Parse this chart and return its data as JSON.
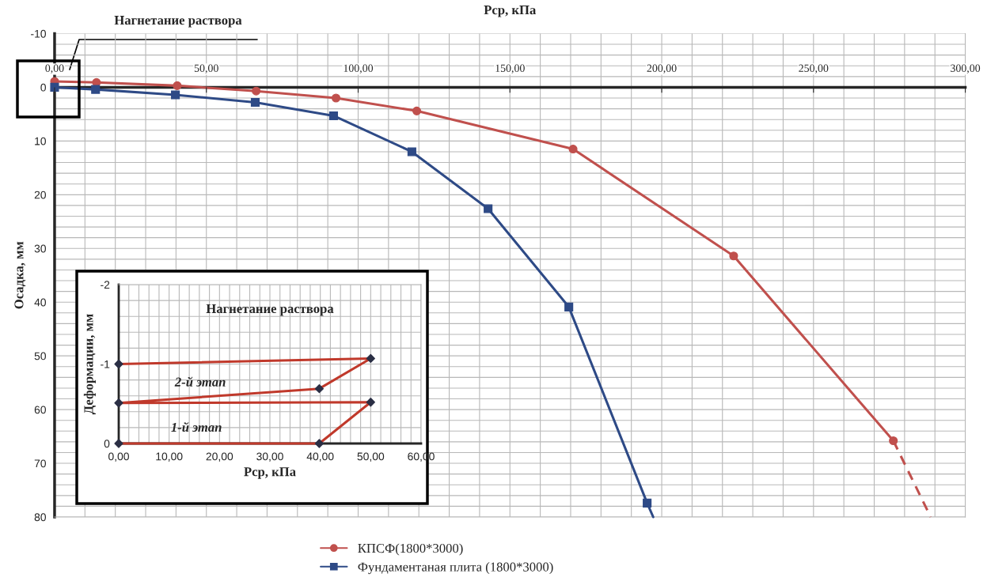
{
  "chart_data": [
    {
      "type": "line",
      "xlabel": "Рср, кПа",
      "ylabel": "Осадка, мм",
      "xlim": [
        0,
        300
      ],
      "ylim": [
        80,
        -10
      ],
      "xticks": [
        {
          "value": 0,
          "label": "0,00"
        },
        {
          "value": 50,
          "label": "50,00"
        },
        {
          "value": 100,
          "label": "100,00"
        },
        {
          "value": 150,
          "label": "150,00"
        },
        {
          "value": 200,
          "label": "200,00"
        },
        {
          "value": 250,
          "label": "250,00"
        },
        {
          "value": 300,
          "label": "300,00"
        }
      ],
      "yticks": [
        -10,
        0,
        10,
        20,
        30,
        40,
        50,
        60,
        70,
        80
      ],
      "grid": true,
      "legend": "bottom",
      "annotations": [
        "Нагнетание раствора"
      ],
      "series": [
        {
          "name": "КПСФ(1800*3000)",
          "color": "#c0504d",
          "marker": "circle",
          "line_style": "solid",
          "x": [
            0,
            13.8,
            40.4,
            66.4,
            92.7,
            119.3,
            170.8,
            223.7,
            276.3
          ],
          "values": [
            -1.1,
            -0.9,
            -0.3,
            0.7,
            2.0,
            4.4,
            11.5,
            31.4,
            65.8
          ]
        },
        {
          "color": "#c0504d",
          "marker": "none",
          "line_style": "dashed",
          "x": [
            276.3,
            288.6
          ],
          "values": [
            65.8,
            80
          ]
        },
        {
          "name": "Фундаментаная плита (1800*3000)",
          "color": "#2e4a86",
          "marker": "square",
          "line_style": "solid",
          "x": [
            0,
            13.5,
            39.8,
            66.1,
            91.9,
            117.7,
            142.8,
            169.4,
            195.2
          ],
          "values": [
            0,
            0.4,
            1.4,
            2.8,
            5.3,
            12.0,
            22.6,
            40.9,
            77.4
          ]
        },
        {
          "color": "#2e4a86",
          "marker": "none",
          "line_style": "solid",
          "x": [
            195.2,
            197.2
          ],
          "values": [
            77.4,
            80
          ]
        }
      ]
    },
    {
      "type": "line",
      "title": "Нагнетание раствора",
      "xlabel": "Рср, кПа",
      "ylabel": "Деформации, мм",
      "xlim": [
        0,
        60
      ],
      "ylim": [
        0,
        -2
      ],
      "xticks": [
        {
          "value": 0,
          "label": "0,00"
        },
        {
          "value": 10,
          "label": "10,00"
        },
        {
          "value": 20,
          "label": "20,00"
        },
        {
          "value": 30,
          "label": "30,00"
        },
        {
          "value": 40,
          "label": "40,00"
        },
        {
          "value": 50,
          "label": "50,00"
        },
        {
          "value": 60,
          "label": "60,00"
        }
      ],
      "yticks": [
        -2,
        -1,
        0
      ],
      "grid": true,
      "annotations": [
        "2-й этап",
        "1-й этап"
      ],
      "series": [
        {
          "color": "#c0392b",
          "marker": "none",
          "line_style": "solid",
          "x": [
            0,
            39.8,
            50,
            0,
            39.8,
            50,
            0
          ],
          "values": [
            0,
            0,
            -0.52,
            -0.51,
            -0.69,
            -1.07,
            -1.0
          ]
        },
        {
          "type": "scatter",
          "color": "#2b2f45",
          "marker": "diamond",
          "x": [
            0,
            39.8,
            50,
            0,
            39.8,
            50,
            0
          ],
          "values": [
            0,
            0,
            -0.52,
            -0.51,
            -0.69,
            -1.07,
            -1.0
          ]
        }
      ]
    }
  ]
}
